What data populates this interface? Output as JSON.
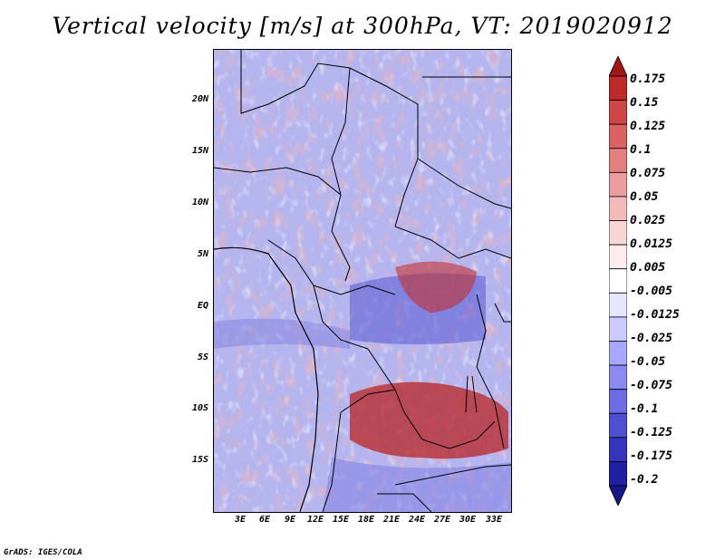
{
  "title": "Vertical velocity [m/s] at 300hPa, VT: 2019020912",
  "credit": "GrADS: IGES/COLA",
  "map": {
    "lat_ticks": [
      "20N",
      "15N",
      "10N",
      "5N",
      "EQ",
      "5S",
      "10S",
      "15S"
    ],
    "lon_ticks": [
      "3E",
      "6E",
      "9E",
      "12E",
      "15E",
      "18E",
      "21E",
      "24E",
      "27E",
      "30E",
      "33E"
    ]
  },
  "colorbar": {
    "labels": [
      "0.175",
      "0.15",
      "0.125",
      "0.1",
      "0.075",
      "0.05",
      "0.025",
      "0.0125",
      "0.005",
      "-0.005",
      "-0.0125",
      "-0.025",
      "-0.05",
      "-0.075",
      "-0.1",
      "-0.125",
      "-0.175",
      "-0.2"
    ],
    "colors": [
      "#a01818",
      "#be2a2a",
      "#cf4646",
      "#dc6262",
      "#e47f7f",
      "#ec9c9c",
      "#f3baba",
      "#f8d6d6",
      "#fcebeb",
      "#ffffff",
      "#e6e6ff",
      "#cacaff",
      "#a8a8ff",
      "#8a8af2",
      "#6c6ce3",
      "#4f4fd1",
      "#3434bd",
      "#2020a2",
      "#16168a"
    ]
  }
}
